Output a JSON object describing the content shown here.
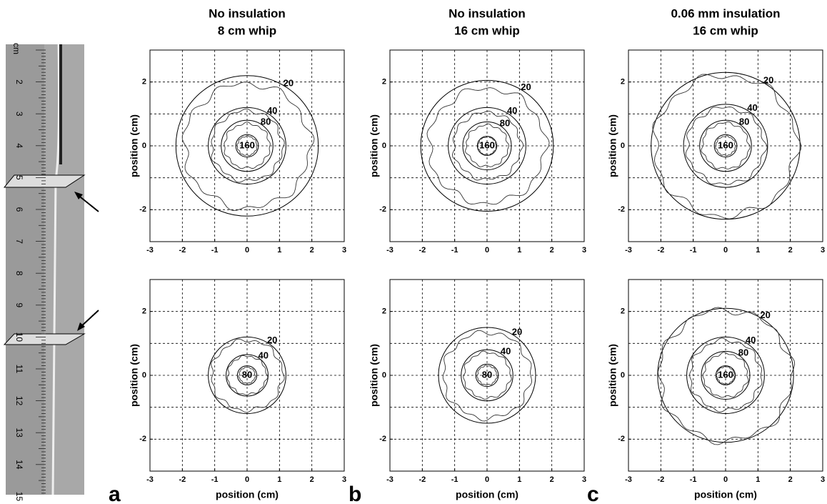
{
  "ruler": {
    "unit": "cm",
    "marks": [
      "2",
      "3",
      "4",
      "5",
      "6",
      "7",
      "8",
      "9",
      "10",
      "11",
      "12",
      "13",
      "14",
      "15"
    ]
  },
  "chart_data": [
    {
      "type": "contour",
      "title": [
        "No insulation",
        "8 cm whip"
      ],
      "ylabel": "position  (cm)",
      "xlim": [
        -3,
        3
      ],
      "ylim": [
        -3,
        3
      ],
      "xticks": [
        -3,
        -2,
        -1,
        0,
        1,
        2,
        3
      ],
      "yticks": [
        -2,
        0,
        2
      ],
      "ygrid": [
        -1,
        1
      ],
      "grid": true,
      "levels": [
        20,
        40,
        80,
        160
      ],
      "radii": [
        2.2,
        1.2,
        0.8,
        0.35
      ],
      "measured_radii": [
        1.95,
        1.1,
        0.7,
        0.3
      ]
    },
    {
      "type": "contour",
      "title": [
        "No insulation",
        "16 cm whip"
      ],
      "ylabel": "position  (cm)",
      "xlim": [
        -3,
        3
      ],
      "ylim": [
        -3,
        3
      ],
      "xticks": [
        -3,
        -2,
        -1,
        0,
        1,
        2,
        3
      ],
      "yticks": [
        -2,
        0,
        2
      ],
      "ygrid": [
        -1,
        1
      ],
      "grid": true,
      "levels": [
        20,
        40,
        80,
        160
      ],
      "radii": [
        2.05,
        1.2,
        0.75,
        0.3
      ],
      "measured_radii": [
        1.8,
        1.05,
        0.65,
        0.28
      ]
    },
    {
      "type": "contour",
      "title": [
        "0.06 mm insulation",
        "16 cm whip"
      ],
      "ylabel": "position  (cm)",
      "xlim": [
        -3,
        3
      ],
      "ylim": [
        -3,
        3
      ],
      "xticks": [
        -3,
        -2,
        -1,
        0,
        1,
        2,
        3
      ],
      "yticks": [
        -2,
        0,
        2
      ],
      "ygrid": [
        -1,
        1
      ],
      "grid": true,
      "levels": [
        20,
        40,
        80,
        160
      ],
      "radii": [
        2.3,
        1.3,
        0.8,
        0.35
      ],
      "measured_radii": [
        2.2,
        1.2,
        0.72,
        0.3
      ]
    },
    {
      "type": "contour",
      "ylabel": "position  (cm)",
      "xlabel": "position  (cm)",
      "panel_label": "a",
      "xlim": [
        -3,
        3
      ],
      "ylim": [
        -3,
        3
      ],
      "xticks": [
        -3,
        -2,
        -1,
        0,
        1,
        2,
        3
      ],
      "yticks": [
        -2,
        0,
        2
      ],
      "ygrid": [
        -1,
        1
      ],
      "grid": true,
      "levels": [
        20,
        40,
        80
      ],
      "radii": [
        1.2,
        0.65,
        0.3
      ],
      "measured_radii": [
        1.1,
        0.6,
        0.25
      ]
    },
    {
      "type": "contour",
      "ylabel": "position  (cm)",
      "xlabel": "position  (cm)",
      "panel_label": "b",
      "xlim": [
        -3,
        3
      ],
      "ylim": [
        -3,
        3
      ],
      "xticks": [
        -3,
        -2,
        -1,
        0,
        1,
        2,
        3
      ],
      "yticks": [
        -2,
        0,
        2
      ],
      "ygrid": [
        -1,
        1
      ],
      "grid": true,
      "levels": [
        20,
        40,
        80
      ],
      "radii": [
        1.5,
        0.8,
        0.35
      ],
      "measured_radii": [
        1.35,
        0.72,
        0.3
      ]
    },
    {
      "type": "contour",
      "ylabel": "position  (cm)",
      "xlabel": "position  (cm)",
      "panel_label": "c",
      "xlim": [
        -3,
        3
      ],
      "ylim": [
        -3,
        3
      ],
      "xticks": [
        -3,
        -2,
        -1,
        0,
        1,
        2,
        3
      ],
      "yticks": [
        -2,
        0,
        2
      ],
      "ygrid": [
        -1,
        1
      ],
      "grid": true,
      "levels": [
        20,
        40,
        80,
        160
      ],
      "radii": [
        2.1,
        1.2,
        0.75,
        0.3
      ],
      "measured_radii": [
        2.05,
        1.1,
        0.68,
        0.27
      ]
    }
  ]
}
